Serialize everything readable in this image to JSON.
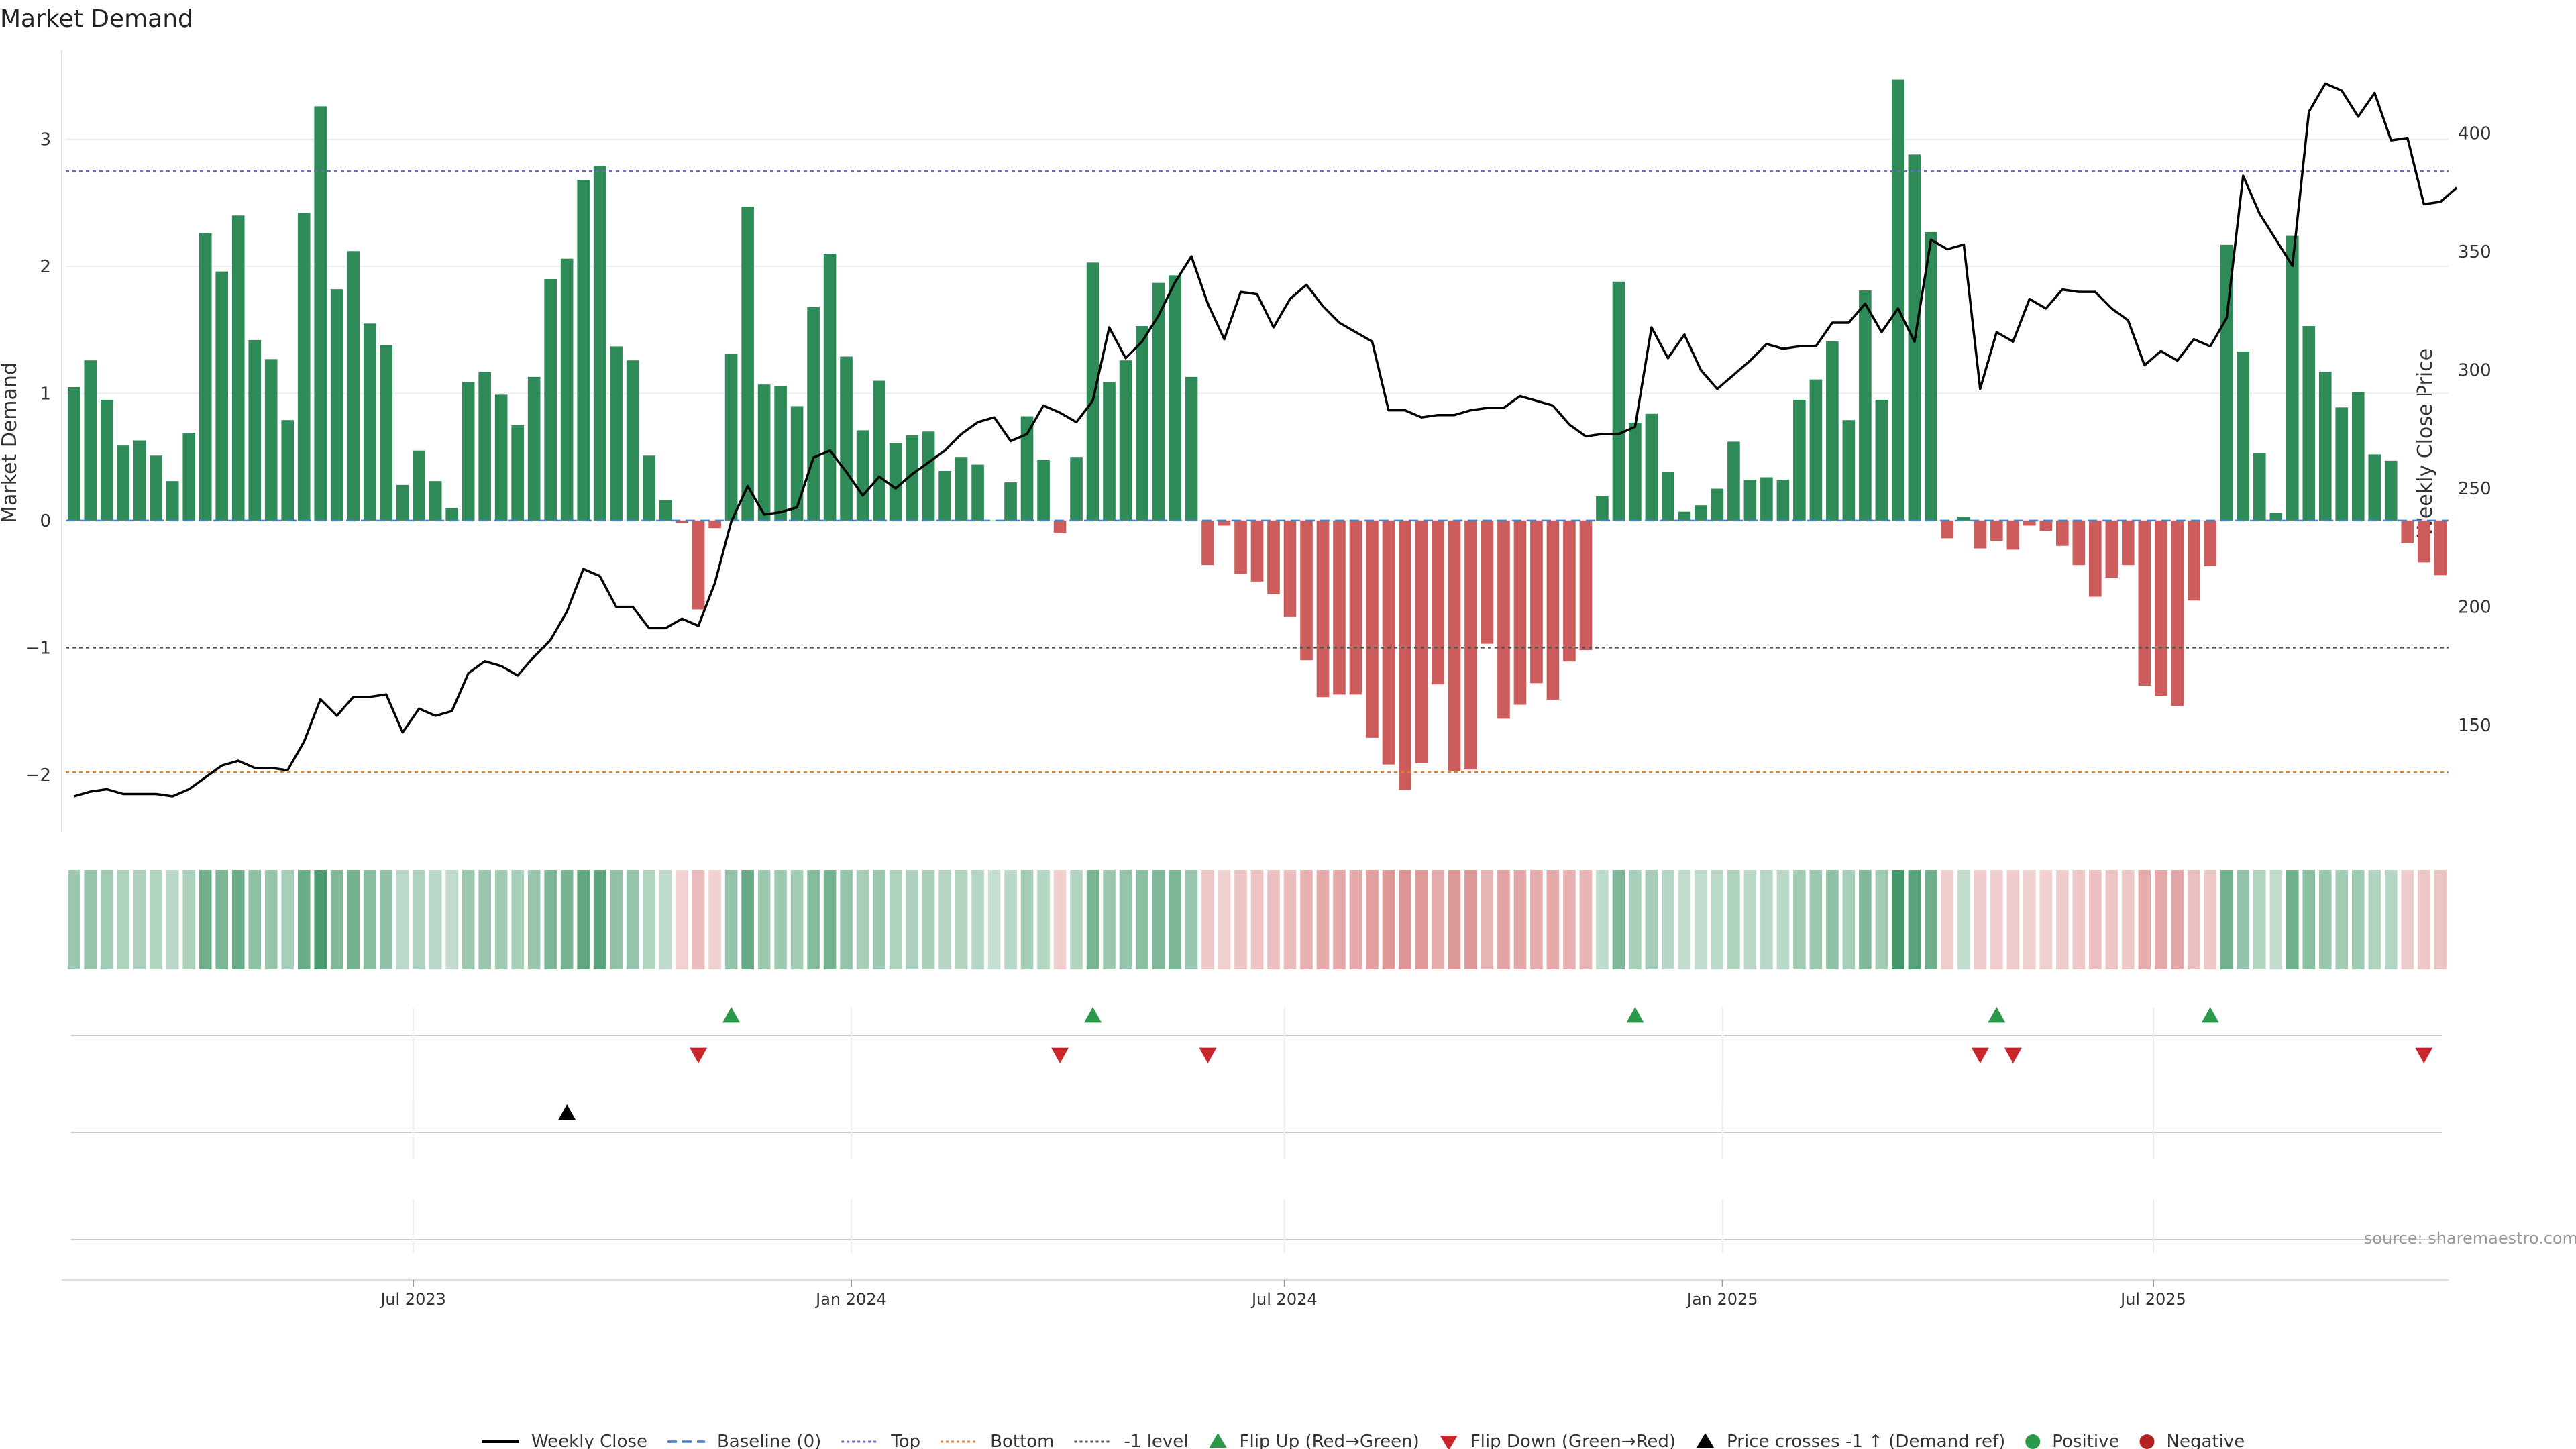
{
  "chart_data": {
    "type": "bar",
    "title": "Market Demand",
    "ylabel": "Market Demand",
    "y2label": "Weekly Close Price",
    "ylim": [
      -2.45,
      3.7
    ],
    "y2lim": [
      105,
      435
    ],
    "yticks": [
      -2,
      -1,
      0,
      1,
      2,
      3
    ],
    "yticklabels": [
      "−2",
      "−1",
      "0",
      "1",
      "2",
      "3"
    ],
    "y2ticks": [
      150,
      200,
      250,
      300,
      350,
      400
    ],
    "x_start": "2023-02-05",
    "x_end": "2025-11-02",
    "xticks": [
      {
        "date": "2023-07-01",
        "label": "Jul 2023"
      },
      {
        "date": "2024-01-01",
        "label": "Jan 2024"
      },
      {
        "date": "2024-07-01",
        "label": "Jul 2024"
      },
      {
        "date": "2025-01-01",
        "label": "Jan 2025"
      },
      {
        "date": "2025-07-01",
        "label": "Jul 2025"
      }
    ],
    "levels": {
      "top": 2.75,
      "bottom": -1.98,
      "minus_one": -1.0,
      "baseline": 0
    },
    "demand": [
      1.05,
      1.26,
      0.95,
      0.59,
      0.63,
      0.51,
      0.31,
      0.69,
      2.26,
      1.96,
      2.4,
      1.42,
      1.27,
      0.79,
      2.42,
      3.26,
      1.82,
      2.12,
      1.55,
      1.38,
      0.28,
      0.55,
      0.31,
      0.1,
      1.09,
      1.17,
      0.99,
      0.75,
      1.13,
      1.9,
      2.06,
      2.68,
      2.79,
      1.37,
      1.26,
      0.51,
      0.16,
      -0.02,
      -0.7,
      -0.06,
      1.31,
      2.47,
      1.07,
      1.06,
      0.9,
      1.68,
      2.1,
      1.29,
      0.71,
      1.1,
      0.61,
      0.67,
      0.7,
      0.39,
      0.5,
      0.44,
      0.0,
      0.3,
      0.82,
      0.48,
      -0.1,
      0.5,
      2.03,
      1.09,
      1.26,
      1.53,
      1.87,
      1.93,
      1.13,
      -0.35,
      -0.04,
      -0.42,
      -0.48,
      -0.58,
      -0.76,
      -1.1,
      -1.39,
      -1.37,
      -1.37,
      -1.71,
      -1.92,
      -2.12,
      -1.91,
      -1.29,
      -1.97,
      -1.96,
      -0.97,
      -1.56,
      -1.45,
      -1.28,
      -1.41,
      -1.11,
      -1.02,
      0.19,
      1.88,
      0.77,
      0.84,
      0.38,
      0.07,
      0.12,
      0.25,
      0.62,
      0.32,
      0.34,
      0.32,
      0.95,
      1.11,
      1.41,
      0.79,
      1.81,
      0.95,
      3.47,
      2.88,
      2.27,
      -0.14,
      0.03,
      -0.22,
      -0.16,
      -0.23,
      -0.04,
      -0.08,
      -0.2,
      -0.35,
      -0.6,
      -0.45,
      -0.35,
      -1.3,
      -1.38,
      -1.46,
      -0.63,
      -0.36,
      2.17,
      1.33,
      0.53,
      0.06,
      2.24,
      1.53,
      1.17,
      0.89,
      1.01,
      0.52,
      0.47,
      -0.18,
      -0.33,
      -0.43
    ],
    "price": [
      120,
      122,
      123,
      121,
      121,
      121,
      120,
      123,
      128,
      133,
      135,
      132,
      132,
      131,
      143,
      161,
      154,
      162,
      162,
      163,
      147,
      157,
      154,
      156,
      172,
      177,
      175,
      171,
      179,
      186,
      198,
      216,
      213,
      200,
      200,
      191,
      191,
      195,
      192,
      210,
      236,
      251,
      239,
      240,
      242,
      263,
      266,
      257,
      247,
      255,
      250,
      256,
      261,
      266,
      273,
      278,
      280,
      270,
      273,
      285,
      282,
      278,
      287,
      318,
      305,
      312,
      323,
      337,
      348,
      328,
      313,
      333,
      332,
      318,
      330,
      336,
      327,
      320,
      316,
      312,
      283,
      283,
      280,
      281,
      281,
      283,
      284,
      284,
      289,
      287,
      285,
      277,
      272,
      273,
      273,
      276,
      318,
      305,
      315,
      300,
      292,
      298,
      304,
      311,
      309,
      310,
      310,
      320,
      320,
      328,
      316,
      326,
      312,
      355,
      351,
      353,
      292,
      316,
      312,
      330,
      326,
      334,
      333,
      333,
      326,
      321,
      302,
      308,
      304,
      313,
      310,
      322,
      382,
      366,
      355,
      344,
      409,
      421,
      418,
      407,
      417,
      397,
      398,
      370,
      371,
      377
    ],
    "flip_up": [
      40,
      62,
      95,
      117,
      130
    ],
    "flip_down": [
      38,
      60,
      69,
      116,
      118,
      143
    ],
    "price_cross": [
      30
    ],
    "legend": [
      {
        "label": "Weekly Close",
        "marker": "line",
        "color": "#000000"
      },
      {
        "label": "Baseline (0)",
        "marker": "dash",
        "color": "#4a7fc1"
      },
      {
        "label": "Top",
        "marker": "dot",
        "color": "#6a6ab8"
      },
      {
        "label": "Bottom",
        "marker": "dot",
        "color": "#d9822b"
      },
      {
        "label": "-1 level",
        "marker": "dot",
        "color": "#555555"
      },
      {
        "label": "Flip Up (Red→Green)",
        "marker": "tri-up",
        "color": "#2a9a4a"
      },
      {
        "label": "Flip Down (Green→Red)",
        "marker": "tri-down",
        "color": "#c9262c"
      },
      {
        "label": "Price crosses -1 ↑ (Demand ref)",
        "marker": "tri-up",
        "color": "#000000"
      },
      {
        "label": "Positive",
        "marker": "circle",
        "color": "#2a9a4a"
      },
      {
        "label": "Negative",
        "marker": "circle",
        "color": "#b22222"
      }
    ],
    "colors": {
      "positive": "#2e8b57",
      "negative": "#cd5c5c",
      "price": "#000000"
    }
  },
  "source": "source: sharemaestro.com"
}
